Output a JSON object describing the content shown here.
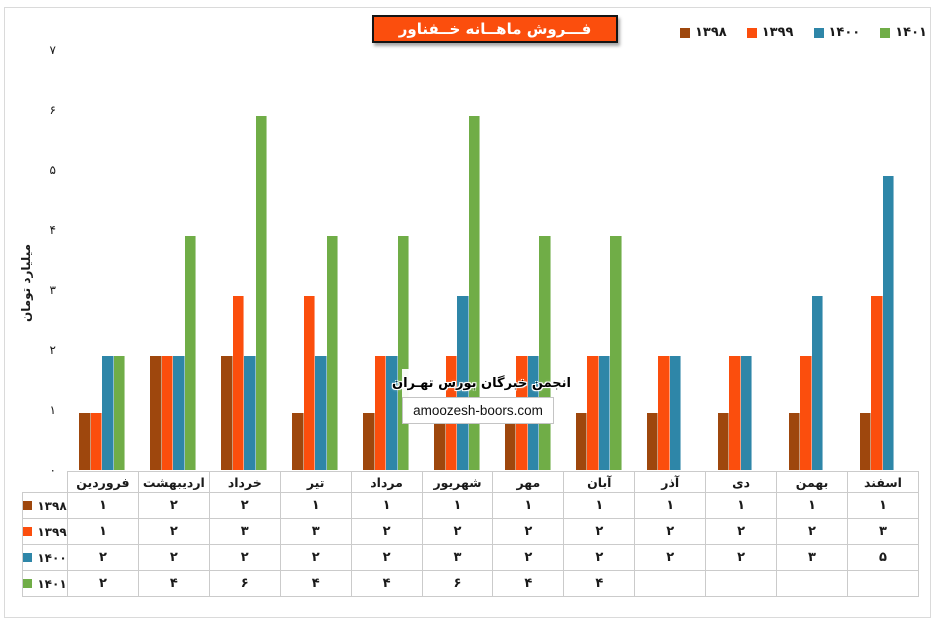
{
  "persian_digits": "۰۱۲۳۴۵۶۷۸۹",
  "title": "فـــروش ماهــانه خــفناور",
  "colors": {
    "title_bg": "#FB4E0D",
    "frame_border": "#DADADA",
    "table_border": "#CBCBCB"
  },
  "y_axis": {
    "title": "میلیارد تومان",
    "tick_labels": [
      "۰",
      "۱",
      "۲",
      "۳",
      "۴",
      "۵",
      "۶",
      "۷"
    ],
    "min": 0,
    "max": 7
  },
  "watermark": {
    "line1": "انجمن خبرگان بورس تهـران",
    "line2": "amoozesh-boors.com"
  },
  "chart_data": {
    "type": "bar",
    "title": "فـــروش ماهــانه خــفناور",
    "ylabel": "میلیارد تومان",
    "ylim": [
      0,
      7
    ],
    "grid": false,
    "legend_position": "top-right",
    "data_table_shown": true,
    "categories": [
      "فروردین",
      "اردیبهشت",
      "خرداد",
      "تیر",
      "مرداد",
      "شهریور",
      "مهر",
      "آبان",
      "آذر",
      "دی",
      "بهمن",
      "اسفند"
    ],
    "series": [
      {
        "name": "۱۳۹۸",
        "color": "#9E470D",
        "values": [
          1,
          2,
          2,
          1,
          1,
          1,
          1,
          1,
          1,
          1,
          1,
          1
        ]
      },
      {
        "name": "۱۳۹۹",
        "color": "#FB4E0D",
        "values": [
          1,
          2,
          3,
          3,
          2,
          2,
          2,
          2,
          2,
          2,
          2,
          3
        ]
      },
      {
        "name": "۱۴۰۰",
        "color": "#2E86A8",
        "values": [
          2,
          2,
          2,
          2,
          2,
          3,
          2,
          2,
          2,
          2,
          3,
          5
        ]
      },
      {
        "name": "۱۴۰۱",
        "color": "#70AD47",
        "values": [
          2,
          4,
          6,
          4,
          4,
          6,
          4,
          4,
          null,
          null,
          null,
          null
        ]
      }
    ]
  }
}
